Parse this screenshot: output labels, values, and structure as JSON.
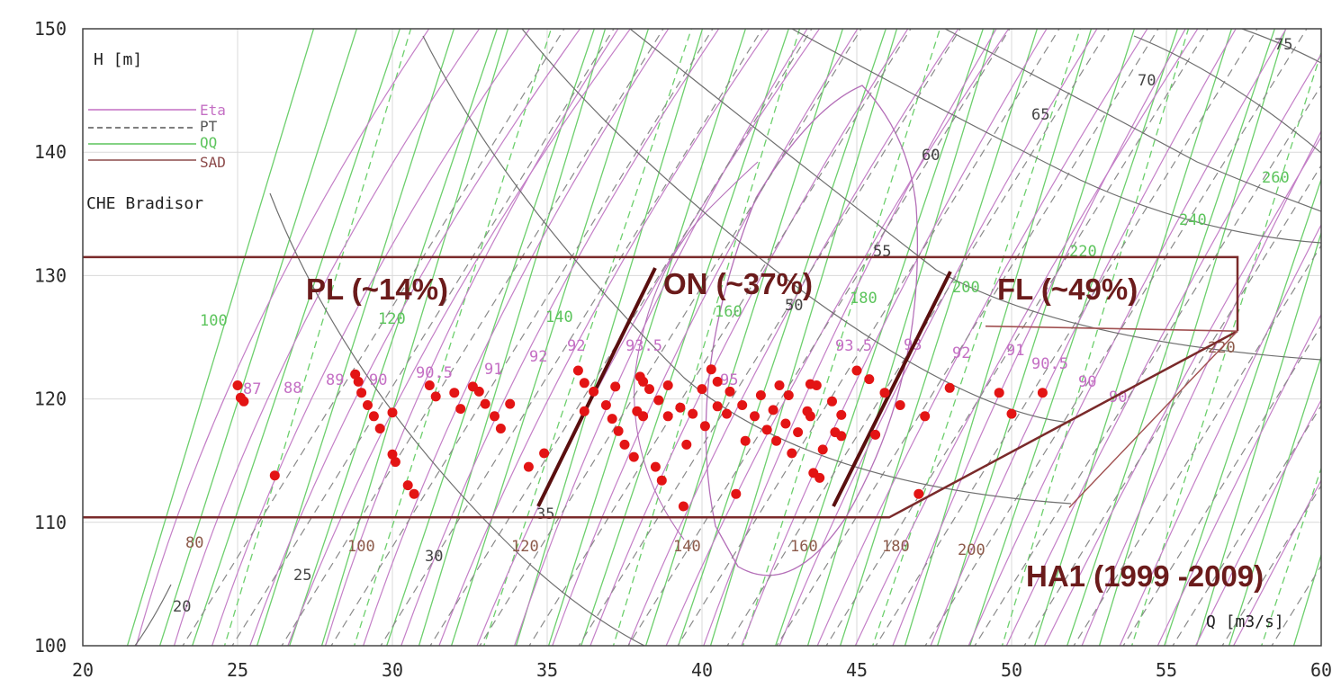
{
  "chart_data": {
    "type": "scatter",
    "title": "",
    "xlabel": "Q [m3/s]",
    "ylabel": "H [m]",
    "xlim": [
      20,
      60
    ],
    "ylim": [
      100,
      150
    ],
    "x_ticks": [
      "20",
      "25",
      "30",
      "35",
      "40",
      "45",
      "50",
      "55",
      "60"
    ],
    "y_ticks": [
      "100",
      "110",
      "120",
      "130",
      "140",
      "150"
    ],
    "grid": true,
    "station": "CHE Bradisor",
    "legend": {
      "placement": "top-left",
      "entries": [
        {
          "label": "Eta",
          "color": "#c46fc4",
          "style": "solid"
        },
        {
          "label": "PT",
          "color": "#555555",
          "style": "dashed"
        },
        {
          "label": "QQ",
          "color": "#5cc45c",
          "style": "solid"
        },
        {
          "label": "SAD",
          "color": "#8c4a4a",
          "style": "solid"
        }
      ]
    },
    "zones": [
      {
        "label": "PL (~14%)",
        "share_percent": 14
      },
      {
        "label": "ON (~37%)",
        "share_percent": 37
      },
      {
        "label": "FL (~49%)",
        "share_percent": 49
      }
    ],
    "period_label": "HA1 (1999 -2009)",
    "contour_labels": {
      "eta": [
        "87",
        "88",
        "89",
        "90",
        "90.5",
        "91",
        "92",
        "92",
        "93.5",
        "95",
        "93.5",
        "93",
        "92",
        "91",
        "90.5",
        "90",
        "90"
      ],
      "qq": [
        "100",
        "120",
        "140",
        "160",
        "180",
        "200",
        "220",
        "240",
        "260"
      ],
      "pt": [
        "20",
        "25",
        "30",
        "35",
        "50",
        "55",
        "60",
        "65",
        "70",
        "75"
      ],
      "sad": [
        "80",
        "100",
        "120",
        "140",
        "160",
        "180",
        "200",
        "220"
      ]
    },
    "series": [
      {
        "name": "",
        "color": "#e31414",
        "points": [
          [
            25.0,
            121.1
          ],
          [
            25.1,
            120.1
          ],
          [
            25.2,
            119.8
          ],
          [
            26.2,
            113.8
          ],
          [
            28.8,
            122.0
          ],
          [
            28.9,
            121.4
          ],
          [
            29.0,
            120.5
          ],
          [
            29.2,
            119.5
          ],
          [
            29.4,
            118.6
          ],
          [
            29.6,
            117.6
          ],
          [
            30.0,
            115.5
          ],
          [
            30.1,
            114.9
          ],
          [
            30.0,
            118.9
          ],
          [
            30.5,
            113.0
          ],
          [
            30.7,
            112.3
          ],
          [
            31.2,
            121.1
          ],
          [
            31.4,
            120.2
          ],
          [
            32.0,
            120.5
          ],
          [
            32.2,
            119.2
          ],
          [
            32.6,
            121.0
          ],
          [
            32.8,
            120.6
          ],
          [
            33.0,
            119.6
          ],
          [
            33.3,
            118.6
          ],
          [
            33.5,
            117.6
          ],
          [
            33.8,
            119.6
          ],
          [
            34.4,
            114.5
          ],
          [
            34.9,
            115.6
          ],
          [
            36.0,
            122.3
          ],
          [
            36.2,
            121.3
          ],
          [
            36.2,
            119.0
          ],
          [
            36.5,
            120.6
          ],
          [
            36.9,
            119.5
          ],
          [
            37.1,
            118.4
          ],
          [
            37.3,
            117.4
          ],
          [
            37.2,
            121.0
          ],
          [
            37.5,
            116.3
          ],
          [
            37.8,
            115.3
          ],
          [
            38.0,
            121.8
          ],
          [
            38.1,
            121.4
          ],
          [
            37.9,
            119.0
          ],
          [
            38.1,
            118.6
          ],
          [
            38.3,
            120.8
          ],
          [
            38.5,
            114.5
          ],
          [
            38.7,
            113.4
          ],
          [
            38.6,
            119.9
          ],
          [
            38.9,
            121.1
          ],
          [
            38.9,
            118.6
          ],
          [
            39.3,
            119.3
          ],
          [
            39.4,
            111.3
          ],
          [
            39.5,
            116.3
          ],
          [
            39.7,
            118.8
          ],
          [
            40.0,
            120.8
          ],
          [
            40.1,
            117.8
          ],
          [
            40.3,
            122.4
          ],
          [
            40.5,
            119.4
          ],
          [
            40.5,
            121.4
          ],
          [
            40.8,
            118.8
          ],
          [
            40.9,
            120.6
          ],
          [
            41.1,
            112.3
          ],
          [
            41.3,
            119.5
          ],
          [
            41.4,
            116.6
          ],
          [
            41.7,
            118.6
          ],
          [
            41.9,
            120.3
          ],
          [
            42.1,
            117.5
          ],
          [
            42.3,
            119.1
          ],
          [
            42.5,
            121.1
          ],
          [
            42.4,
            116.6
          ],
          [
            42.7,
            118.0
          ],
          [
            42.8,
            120.3
          ],
          [
            42.9,
            115.6
          ],
          [
            43.1,
            117.3
          ],
          [
            43.4,
            119.0
          ],
          [
            43.5,
            121.2
          ],
          [
            43.5,
            118.6
          ],
          [
            43.6,
            114.0
          ],
          [
            43.7,
            121.1
          ],
          [
            43.8,
            113.6
          ],
          [
            43.9,
            115.9
          ],
          [
            44.2,
            119.8
          ],
          [
            44.3,
            117.3
          ],
          [
            44.5,
            117.0
          ],
          [
            44.5,
            118.7
          ],
          [
            45.0,
            122.3
          ],
          [
            45.4,
            121.6
          ],
          [
            45.6,
            117.1
          ],
          [
            45.9,
            120.5
          ],
          [
            46.4,
            119.5
          ],
          [
            47.0,
            112.3
          ],
          [
            47.2,
            118.6
          ],
          [
            48.0,
            120.9
          ],
          [
            49.6,
            120.5
          ],
          [
            50.0,
            118.8
          ],
          [
            51.0,
            120.5
          ]
        ]
      }
    ]
  }
}
